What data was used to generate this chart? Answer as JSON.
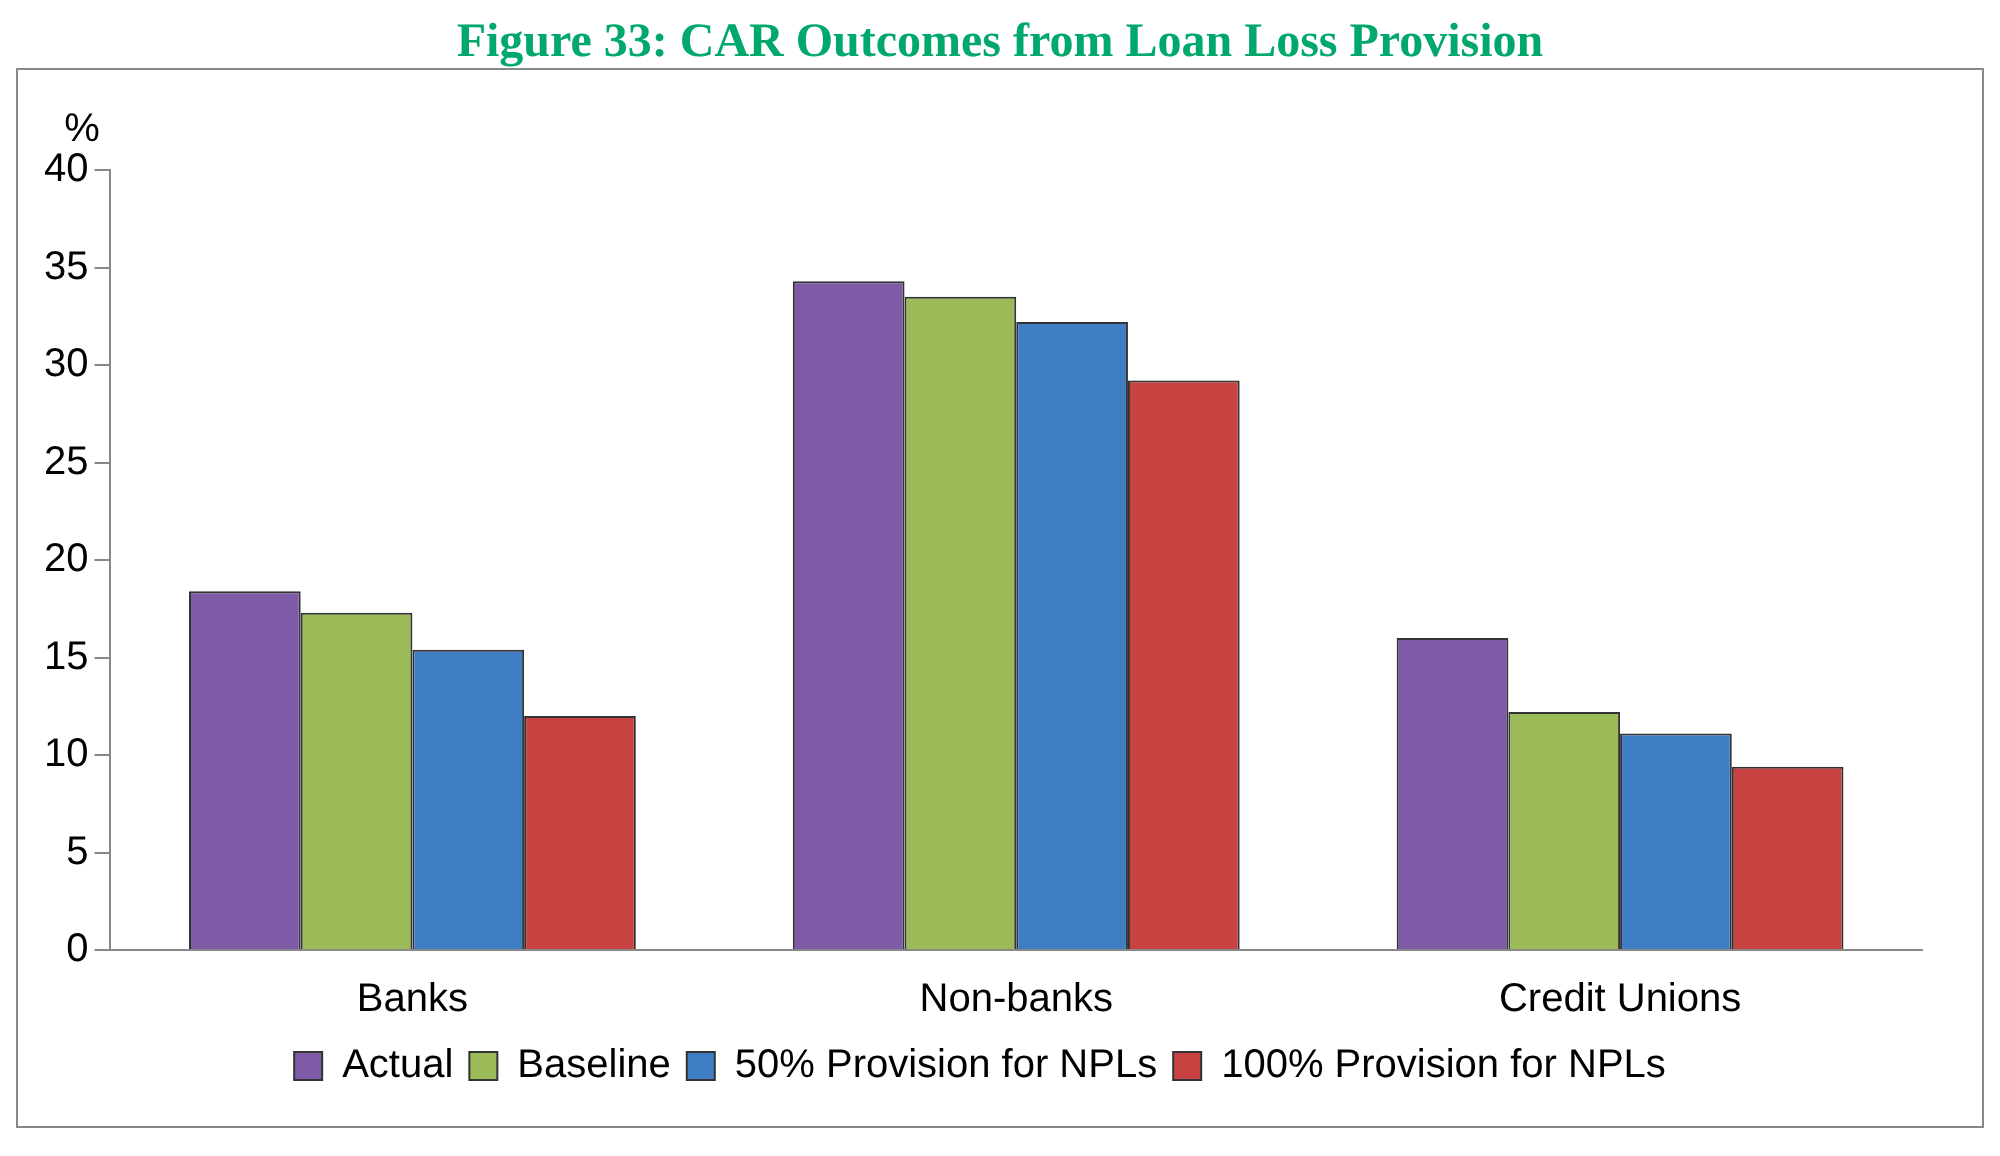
{
  "chart_data": {
    "type": "bar",
    "title": "Figure 33: CAR Outcomes from Loan Loss Provision",
    "ylabel": "%",
    "categories": [
      "Banks",
      "Non-banks",
      "Credit Unions"
    ],
    "series": [
      {
        "name": "Actual",
        "color": "#7d5ba6",
        "values": [
          18.4,
          34.3,
          16.0
        ]
      },
      {
        "name": "Baseline",
        "color": "#9bbb59",
        "values": [
          17.3,
          33.5,
          12.2
        ]
      },
      {
        "name": "50% Provision for NPLs",
        "color": "#3f7dc4",
        "values": [
          15.4,
          32.2,
          11.1
        ]
      },
      {
        "name": "100% Provision for NPLs",
        "color": "#c94242",
        "values": [
          12.0,
          29.2,
          9.4
        ]
      }
    ],
    "ylim": [
      0,
      40
    ],
    "yticks": [
      0,
      5,
      10,
      15,
      20,
      25,
      30,
      35,
      40
    ],
    "grid": false,
    "legend": "bottom"
  }
}
